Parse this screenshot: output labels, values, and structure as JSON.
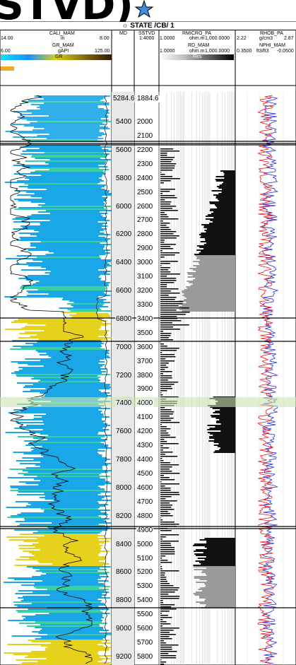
{
  "page_title": {
    "text": "STVD)"
  },
  "well": {
    "name": "STATE /CB/ 1"
  },
  "header": {
    "track_gr": {
      "cali_name": "CALI_MAM",
      "cali_min": "14.00",
      "cali_unit": "in",
      "cali_max": "8.00",
      "gr_name": "GR_MAM",
      "gr_min": "6.00",
      "gr_unit": "gAPI",
      "gr_max": "125.00",
      "fill_label": "GR"
    },
    "track_depth": {
      "md_label": "MD",
      "tvd_label": "SSTVD",
      "scale": "1:4000"
    },
    "track_res": {
      "rmicro_name": "RMICRO_PA",
      "rmicro_min": "1.0000",
      "rmicro_unit": "ohm.m",
      "rmicro_max": "1,000.0000",
      "rd_name": "RD_MAM",
      "rd_min": "1.0000",
      "rd_unit": "ohm.m",
      "rd_max": "1,000.0000",
      "fill_label": "Res"
    },
    "track_dn": {
      "rhob_name": "RHOB_PA",
      "rhob_min": "2.22",
      "rhob_unit": "g/cm3",
      "rhob_max": "2.87",
      "nphi_name": "NPHI_MAM",
      "nphi_min": "0.3500",
      "nphi_unit": "ft3/ft3",
      "nphi_max": "-0.0500"
    }
  },
  "md_labels": [
    "5284.6",
    "5400",
    "5600",
    "5800",
    "6000",
    "6200",
    "6400",
    "6600",
    "6800",
    "7000",
    "7200",
    "7400",
    "7600",
    "7800",
    "8000",
    "8200",
    "8400",
    "8600",
    "8800",
    "9000",
    "9200"
  ],
  "tvd_labels": [
    "1884.6",
    "2000",
    "2100",
    "2200",
    "2300",
    "2400",
    "2500",
    "2600",
    "2700",
    "2800",
    "2900",
    "3000",
    "3100",
    "3200",
    "3300",
    "3400",
    "3500",
    "3600",
    "3700",
    "3800",
    "3900",
    "4000",
    "4100",
    "4200",
    "4300",
    "4400",
    "4500",
    "4600",
    "4700",
    "4800",
    "4900",
    "5000",
    "5100",
    "5200",
    "5300",
    "5400",
    "5500",
    "5600",
    "5700",
    "5800"
  ],
  "md_values": [
    5284.6,
    5400,
    5600,
    5800,
    6000,
    6200,
    6400,
    6600,
    6800,
    7000,
    7200,
    7400,
    7600,
    7800,
    8000,
    8200,
    8400,
    8600,
    8800,
    9000,
    9200
  ],
  "tvd_values": [
    1884.6,
    2000,
    2100,
    2200,
    2300,
    2400,
    2500,
    2600,
    2700,
    2800,
    2900,
    3000,
    3100,
    3200,
    3300,
    3400,
    3500,
    3600,
    3700,
    3800,
    3900,
    4000,
    4100,
    4200,
    4300,
    4400,
    4500,
    4600,
    4700,
    4800,
    4900,
    5000,
    5100,
    5200,
    5300,
    5400,
    5500,
    5600,
    5700,
    5800
  ],
  "colors": {
    "gr_blue": "#1aa7e8",
    "gr_yellow": "#e6d21a",
    "res_grey": "#9a9a9a",
    "rhob": "#e8141b",
    "nphi": "#1c2ee0",
    "highlight": "#c9e4b0",
    "star": "#3a8fe0"
  }
}
